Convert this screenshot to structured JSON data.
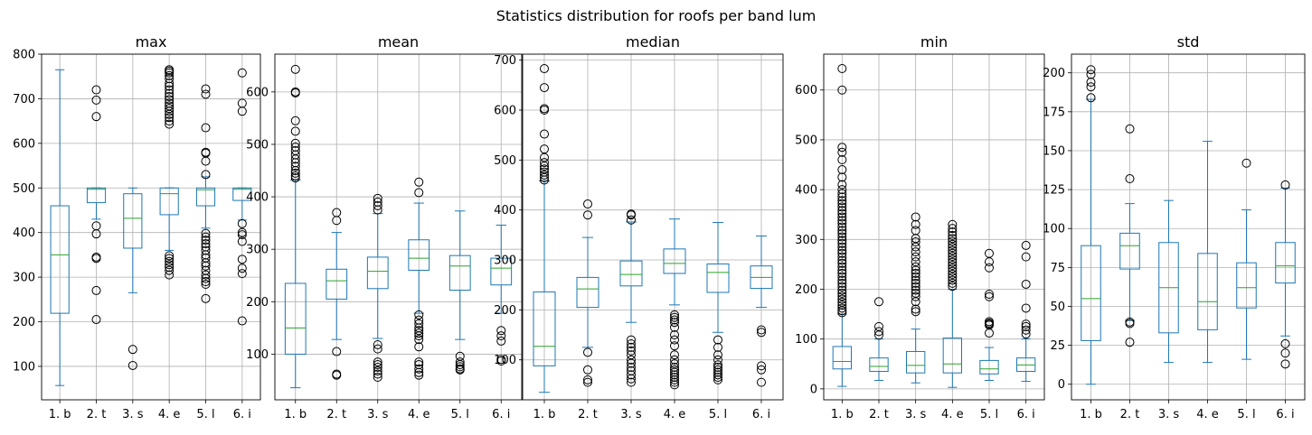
{
  "figure": {
    "title": "Statistics distribution for roofs per band lum"
  },
  "style": {
    "box_color": "#1f77b4",
    "median_color": "#2ca02c",
    "grid_color": "#b0b0b0",
    "flier_color": "#000000"
  },
  "chart_data": [
    {
      "type": "box",
      "title": "max",
      "categories": [
        "1. b",
        "2. t",
        "3. s",
        "4. e",
        "5. l",
        "6. i"
      ],
      "ylim": [
        25,
        800
      ],
      "yticks": [
        100,
        200,
        300,
        400,
        500,
        600,
        700,
        800
      ],
      "grid": true,
      "boxes": [
        {
          "whislo": 57,
          "q1": 219,
          "med": 350,
          "q3": 460,
          "whishi": 765,
          "fliers": []
        },
        {
          "whislo": 430,
          "q1": 467,
          "med": 497,
          "q3": 500,
          "whishi": 500,
          "fliers": [
            720,
            697,
            660,
            415,
            397,
            345,
            342,
            270,
            205
          ]
        },
        {
          "whislo": 265,
          "q1": 365,
          "med": 432,
          "q3": 487,
          "whishi": 500,
          "fliers": [
            138,
            102
          ]
        },
        {
          "whislo": 360,
          "q1": 440,
          "med": 487,
          "q3": 500,
          "whishi": 500,
          "fliers": [
            765,
            762,
            758,
            752,
            745,
            735,
            728,
            720,
            712,
            705,
            698,
            690,
            684,
            678,
            672,
            665,
            658,
            650,
            643,
            348,
            342,
            335,
            328,
            322,
            315,
            305
          ]
        },
        {
          "whislo": 410,
          "q1": 460,
          "med": 496,
          "q3": 500,
          "whishi": 525,
          "fliers": [
            722,
            710,
            635,
            580,
            578,
            560,
            530,
            398,
            390,
            383,
            375,
            368,
            360,
            350,
            343,
            332,
            325,
            315,
            305,
            297,
            290,
            284,
            252
          ]
        },
        {
          "whislo": 428,
          "q1": 472,
          "med": 497,
          "q3": 500,
          "whishi": 500,
          "fliers": [
            758,
            690,
            672,
            420,
            400,
            395,
            380,
            340,
            320,
            308,
            202
          ]
        }
      ]
    },
    {
      "type": "box",
      "title": "mean",
      "categories": [
        "1. b",
        "2. t",
        "3. s",
        "4. e",
        "5. l",
        "6. i"
      ],
      "ylim": [
        13,
        672
      ],
      "yticks": [
        100,
        200,
        300,
        400,
        500,
        600
      ],
      "grid": true,
      "boxes": [
        {
          "whislo": 36,
          "q1": 100,
          "med": 150,
          "q3": 235,
          "whishi": 432,
          "fliers": [
            643,
            600,
            598,
            545,
            525,
            502,
            495,
            488,
            480,
            472,
            465,
            458,
            450,
            445,
            440,
            436
          ]
        },
        {
          "whislo": 128,
          "q1": 205,
          "med": 240,
          "q3": 262,
          "whishi": 332,
          "fliers": [
            370,
            355,
            105,
            62,
            60
          ]
        },
        {
          "whislo": 130,
          "q1": 225,
          "med": 258,
          "q3": 285,
          "whishi": 368,
          "fliers": [
            397,
            390,
            383,
            375,
            118,
            110,
            85,
            80,
            75,
            68,
            62,
            56
          ]
        },
        {
          "whislo": 178,
          "q1": 260,
          "med": 283,
          "q3": 318,
          "whishi": 388,
          "fliers": [
            428,
            408,
            175,
            165,
            158,
            150,
            145,
            140,
            135,
            128,
            114,
            85,
            80,
            72,
            65,
            60
          ]
        },
        {
          "whislo": 128,
          "q1": 222,
          "med": 268,
          "q3": 288,
          "whishi": 373,
          "fliers": [
            96,
            85,
            80,
            76,
            72,
            70
          ]
        },
        {
          "whislo": 178,
          "q1": 232,
          "med": 264,
          "q3": 283,
          "whishi": 346,
          "fliers": [
            145,
            135,
            125,
            90,
            87
          ]
        }
      ]
    },
    {
      "type": "box",
      "title": "median",
      "categories": [
        "1. b",
        "2. t",
        "3. s",
        "4. e",
        "5. l",
        "6. i"
      ],
      "ylim": [
        20,
        712
      ],
      "yticks": [
        100,
        200,
        300,
        400,
        500,
        600,
        700
      ],
      "grid": true,
      "boxes": [
        {
          "whislo": 35,
          "q1": 88,
          "med": 127,
          "q3": 236,
          "whishi": 458,
          "fliers": [
            683,
            645,
            603,
            600,
            552,
            522,
            505,
            495,
            488,
            482,
            476,
            470,
            465,
            460
          ]
        },
        {
          "whislo": 125,
          "q1": 205,
          "med": 242,
          "q3": 265,
          "whishi": 345,
          "fliers": [
            412,
            390,
            115,
            80,
            60,
            55
          ]
        },
        {
          "whislo": 175,
          "q1": 248,
          "med": 271,
          "q3": 298,
          "whishi": 376,
          "fliers": [
            392,
            390,
            380,
            140,
            132,
            125,
            118,
            110,
            100,
            93,
            85,
            78,
            70,
            62,
            55
          ]
        },
        {
          "whislo": 210,
          "q1": 273,
          "med": 293,
          "q3": 322,
          "whishi": 382,
          "fliers": [
            190,
            185,
            180,
            175,
            165,
            150,
            140,
            128,
            110,
            100,
            92,
            85,
            80,
            75,
            70,
            65,
            60,
            55,
            50
          ]
        },
        {
          "whislo": 155,
          "q1": 235,
          "med": 275,
          "q3": 292,
          "whishi": 375,
          "fliers": [
            140,
            125,
            110,
            100,
            90,
            85,
            80,
            75,
            70,
            65,
            60
          ]
        },
        {
          "whislo": 205,
          "q1": 243,
          "med": 265,
          "q3": 288,
          "whishi": 348,
          "fliers": [
            160,
            155,
            88,
            80,
            55
          ]
        }
      ]
    },
    {
      "type": "box",
      "title": "min",
      "categories": [
        "1. b",
        "2. t",
        "3. s",
        "4. e",
        "5. l",
        "6. i"
      ],
      "ylim": [
        -22,
        672
      ],
      "yticks": [
        0,
        100,
        200,
        300,
        400,
        500,
        600
      ],
      "grid": true,
      "boxes": [
        {
          "whislo": 5,
          "q1": 40,
          "med": 55,
          "q3": 85,
          "whishi": 150,
          "fliers": [
            643,
            600,
            485,
            475,
            460,
            440,
            425,
            410,
            400,
            392,
            385,
            378,
            372,
            365,
            358,
            352,
            345,
            338,
            332,
            325,
            318,
            312,
            305,
            298,
            292,
            285,
            278,
            272,
            265,
            258,
            252,
            245,
            238,
            232,
            225,
            218,
            212,
            205,
            198,
            192,
            186,
            180,
            174,
            168,
            162,
            157,
            153
          ]
        },
        {
          "whislo": 17,
          "q1": 35,
          "med": 45,
          "q3": 62,
          "whishi": 100,
          "fliers": [
            175,
            125,
            115,
            108
          ]
        },
        {
          "whislo": 12,
          "q1": 32,
          "med": 47,
          "q3": 75,
          "whishi": 120,
          "fliers": [
            345,
            330,
            318,
            302,
            295,
            285,
            275,
            265,
            255,
            245,
            238,
            232,
            225,
            218,
            212,
            205,
            198,
            192,
            185,
            175,
            160,
            155
          ]
        },
        {
          "whislo": 3,
          "q1": 32,
          "med": 50,
          "q3": 102,
          "whishi": 200,
          "fliers": [
            330,
            322,
            315,
            308,
            302,
            296,
            290,
            284,
            278,
            272,
            266,
            260,
            254,
            248,
            242,
            236,
            230,
            224,
            218,
            212,
            206
          ]
        },
        {
          "whislo": 17,
          "q1": 30,
          "med": 40,
          "q3": 57,
          "whishi": 83,
          "fliers": [
            272,
            255,
            243,
            190,
            185,
            135,
            132,
            130,
            128,
            112
          ]
        },
        {
          "whislo": 15,
          "q1": 35,
          "med": 48,
          "q3": 62,
          "whishi": 100,
          "fliers": [
            288,
            265,
            210,
            162,
            130,
            125,
            118,
            110
          ]
        }
      ]
    },
    {
      "type": "box",
      "title": "std",
      "categories": [
        "1. b",
        "2. t",
        "3. s",
        "4. e",
        "5. l",
        "6. i"
      ],
      "ylim": [
        -10,
        212
      ],
      "yticks": [
        0,
        25,
        50,
        75,
        100,
        125,
        150,
        175,
        200
      ],
      "grid": true,
      "boxes": [
        {
          "whislo": 0,
          "q1": 28,
          "med": 55,
          "q3": 89,
          "whishi": 183,
          "fliers": [
            202,
            199,
            194,
            191,
            184
          ]
        },
        {
          "whislo": 41,
          "q1": 74,
          "med": 89,
          "q3": 97,
          "whishi": 116,
          "fliers": [
            164,
            132,
            40,
            39,
            27
          ]
        },
        {
          "whislo": 14,
          "q1": 33,
          "med": 62,
          "q3": 91,
          "whishi": 118,
          "fliers": []
        },
        {
          "whislo": 14,
          "q1": 35,
          "med": 53,
          "q3": 84,
          "whishi": 156,
          "fliers": []
        },
        {
          "whislo": 16,
          "q1": 49,
          "med": 62,
          "q3": 78,
          "whishi": 112,
          "fliers": [
            142
          ]
        },
        {
          "whislo": 31,
          "q1": 65,
          "med": 76,
          "q3": 91,
          "whishi": 126,
          "fliers": [
            128,
            26,
            20,
            13
          ]
        }
      ]
    }
  ]
}
